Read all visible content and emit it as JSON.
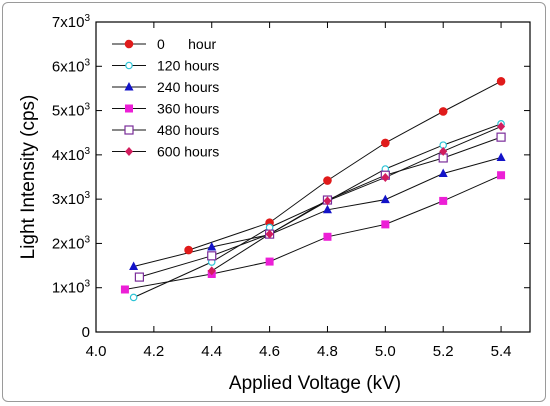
{
  "chart_data": {
    "type": "line",
    "title": "",
    "xlabel": "Applied Voltage (kV)",
    "ylabel": "Light Intensity (cps)",
    "xlim": [
      4.0,
      5.5
    ],
    "ylim": [
      0,
      7000
    ],
    "x_ticks": [
      4.0,
      4.2,
      4.4,
      4.6,
      4.8,
      5.0,
      5.2,
      5.4
    ],
    "x_tick_labels": [
      "4.0",
      "4.2",
      "4.4",
      "4.6",
      "4.8",
      "5.0",
      "5.2",
      "5.4"
    ],
    "y_ticks": [
      0,
      1000,
      2000,
      3000,
      4000,
      5000,
      6000,
      7000
    ],
    "y_tick_labels": [
      {
        "base": "0",
        "exp": ""
      },
      {
        "base": "1x10",
        "exp": "3"
      },
      {
        "base": "2x10",
        "exp": "3"
      },
      {
        "base": "3x10",
        "exp": "3"
      },
      {
        "base": "4x10",
        "exp": "3"
      },
      {
        "base": "5x10",
        "exp": "3"
      },
      {
        "base": "6x10",
        "exp": "3"
      },
      {
        "base": "7x10",
        "exp": "3"
      }
    ],
    "grid": false,
    "legend_position": "top-left",
    "series": [
      {
        "name": "0      hour",
        "color": "#e01b1b",
        "marker": "circle-filled",
        "x": [
          4.32,
          4.6,
          4.8,
          5.0,
          5.2,
          5.4
        ],
        "y": [
          1850,
          2470,
          3420,
          4270,
          4980,
          5660
        ]
      },
      {
        "name": "120 hours",
        "color": "#2ec4d6",
        "marker": "circle-open",
        "x": [
          4.13,
          4.4,
          4.6,
          4.8,
          5.0,
          5.2,
          5.4
        ],
        "y": [
          780,
          1580,
          2360,
          2960,
          3680,
          4220,
          4700
        ]
      },
      {
        "name": "240 hours",
        "color": "#1313c8",
        "marker": "triangle-filled",
        "x": [
          4.13,
          4.4,
          4.6,
          4.8,
          5.0,
          5.2,
          5.4
        ],
        "y": [
          1480,
          1920,
          2200,
          2760,
          2990,
          3580,
          3940
        ]
      },
      {
        "name": "360 hours",
        "color": "#ec1fd6",
        "marker": "square-filled",
        "x": [
          4.1,
          4.4,
          4.6,
          4.8,
          5.0,
          5.2,
          5.4
        ],
        "y": [
          960,
          1310,
          1590,
          2150,
          2430,
          2960,
          3540
        ]
      },
      {
        "name": "480 hours",
        "color": "#7a2d9a",
        "marker": "square-open",
        "x": [
          4.15,
          4.4,
          4.6,
          4.8,
          5.0,
          5.2,
          5.4
        ],
        "y": [
          1240,
          1720,
          2210,
          2980,
          3540,
          3930,
          4400
        ]
      },
      {
        "name": "600 hours",
        "color": "#d21d5e",
        "marker": "diamond-filled",
        "x": [
          4.4,
          4.6,
          4.8,
          5.0,
          5.2,
          5.4
        ],
        "y": [
          1380,
          2210,
          2960,
          3490,
          4080,
          4640
        ]
      }
    ]
  }
}
